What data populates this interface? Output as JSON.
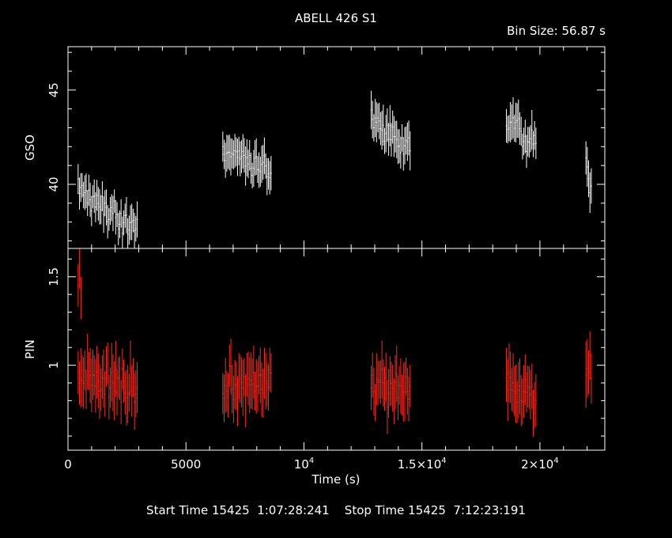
{
  "title": "ABELL 426 S1",
  "bin_size": "Bin Size: 56.87 s",
  "footer": {
    "start_label": "Start Time",
    "start_value": "15425  1:07:28:241",
    "stop_label": "Stop Time",
    "stop_value": "15425  7:12:23:191"
  },
  "colors": {
    "background": "#000000",
    "axes": "#ffffff",
    "gso_series": "#ffffff",
    "pin_series": "#ff2a1a"
  },
  "chart_data": {
    "type": "scatter",
    "title": "ABELL 426 S1",
    "xlabel": "Time (s)",
    "xlim": [
      0,
      22750
    ],
    "x_ticks": [
      {
        "value": 0,
        "label": "0"
      },
      {
        "value": 5000,
        "label": "5000"
      },
      {
        "value": 10000,
        "label": "10",
        "exp": "4"
      },
      {
        "value": 15000,
        "label": "1.5×10",
        "exp": "4"
      },
      {
        "value": 20000,
        "label": "2×10",
        "exp": "4"
      }
    ],
    "bin_size_s": 56.87,
    "panels": [
      {
        "name": "GSO",
        "ylabel": "GSO",
        "ylim": [
          36.6,
          47.3
        ],
        "y_ticks": [
          {
            "value": 40,
            "label": "40"
          },
          {
            "value": 45,
            "label": "45"
          }
        ],
        "color": "#ffffff",
        "segments": [
          {
            "start": 430,
            "end": 2970,
            "y_start": 39.8,
            "y_end": 37.6,
            "err": 0.75
          },
          {
            "start": 6560,
            "end": 8630,
            "y_start": 41.9,
            "y_end": 40.5,
            "err": 0.8
          },
          {
            "start": 12850,
            "end": 14540,
            "y_start": 43.6,
            "y_end": 41.8,
            "err": 0.85
          },
          {
            "start": 18580,
            "end": 19870,
            "y_start": 43.2,
            "y_end": 42.4,
            "err": 0.85
          },
          {
            "start": 21950,
            "end": 22200,
            "y_start": 41.0,
            "y_end": 40.0,
            "err": 0.9
          }
        ]
      },
      {
        "name": "PIN",
        "ylabel": "PIN",
        "ylim": [
          0.52,
          1.66
        ],
        "y_ticks": [
          {
            "value": 1,
            "label": "1"
          },
          {
            "value": 1.5,
            "label": "1.5"
          }
        ],
        "color": "#ff2a1a",
        "segments": [
          {
            "start": 430,
            "end": 2970,
            "y_start": 0.95,
            "y_end": 0.88,
            "err": 0.13
          },
          {
            "start": 6560,
            "end": 8630,
            "y_start": 0.88,
            "y_end": 0.92,
            "err": 0.13
          },
          {
            "start": 12850,
            "end": 14540,
            "y_start": 0.9,
            "y_end": 0.88,
            "err": 0.13
          },
          {
            "start": 18580,
            "end": 19870,
            "y_start": 0.92,
            "y_end": 0.8,
            "err": 0.14
          },
          {
            "start": 21950,
            "end": 22200,
            "y_start": 0.98,
            "y_end": 0.9,
            "err": 0.15
          }
        ],
        "spike": [
          {
            "x": 430,
            "y": 1.45
          },
          {
            "x": 490,
            "y": 1.55
          },
          {
            "x": 550,
            "y": 1.38
          }
        ]
      }
    ]
  }
}
